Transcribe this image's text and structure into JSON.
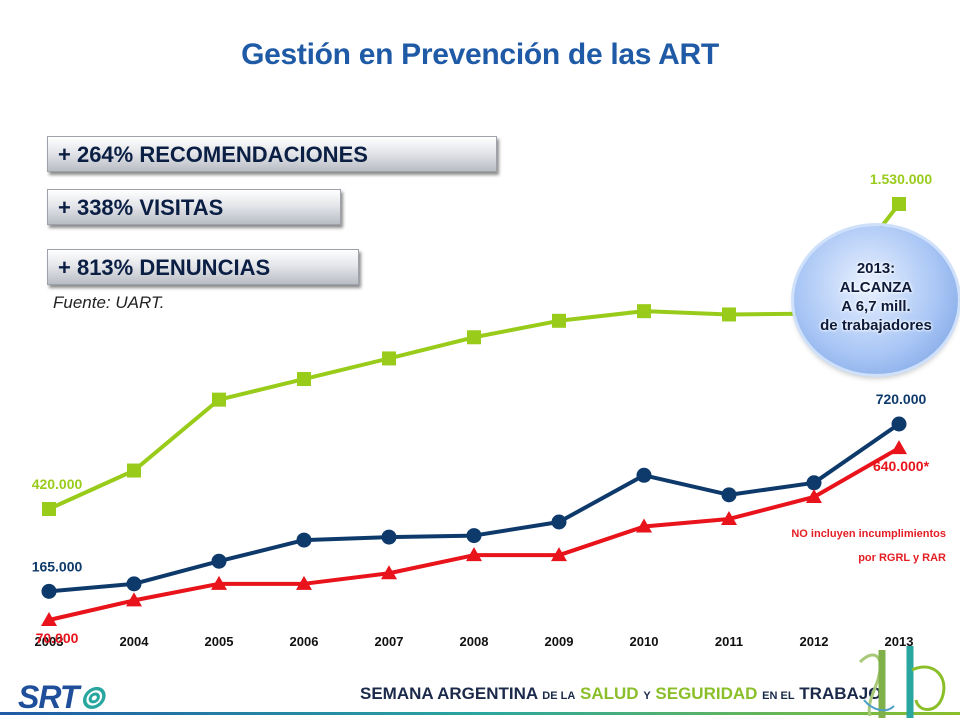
{
  "title": "Gestión en Prevención de las ART",
  "stats": [
    "+ 264% RECOMENDACIONES",
    "+ 338% VISITAS",
    "+ 813% DENUNCIAS"
  ],
  "source": "Fuente: UART.",
  "bubble": {
    "line1": "2013:",
    "line2": "ALCANZA",
    "line3": "A 6,7 mill.",
    "line4": "de trabajadores"
  },
  "note": {
    "line1": "NO incluyen incumplimientos",
    "line2": "por RGRL  y RAR"
  },
  "footer": {
    "logo": "SRT",
    "event_part1": "SEMANA ARGENTINA",
    "event_part2": "DE LA",
    "event_part3": "SALUD",
    "event_part4": "Y",
    "event_part5": "SEGURIDAD",
    "event_part6": "EN EL",
    "event_part7": "TRABAJO"
  },
  "colors": {
    "green": "#99cc1a",
    "navy": "#0e3a6b",
    "red": "#e8131b",
    "title_blue": "#1f5aa6"
  },
  "chart_data": {
    "type": "line",
    "categories": [
      "2003",
      "2004",
      "2005",
      "2006",
      "2007",
      "2008",
      "2009",
      "2010",
      "2011",
      "2012",
      "2013"
    ],
    "series": [
      {
        "marker": "square",
        "color": "#99cc1a",
        "values": [
          420000,
          560000,
          818000,
          893000,
          968000,
          1045000,
          1105000,
          1140000,
          1128000,
          1131000,
          1530000
        ],
        "labels": [
          {
            "index": 0,
            "text": "420.000",
            "pos": "above"
          },
          {
            "index": 10,
            "text": "1.530.000",
            "pos": "above"
          }
        ]
      },
      {
        "marker": "circle",
        "color": "#0e3a6b",
        "values": [
          165000,
          190000,
          265000,
          335000,
          345000,
          350000,
          395000,
          550000,
          485000,
          525000,
          720000
        ],
        "labels": [
          {
            "index": 0,
            "text": "165.000",
            "pos": "above"
          },
          {
            "index": 10,
            "text": "720.000",
            "pos": "above"
          }
        ]
      },
      {
        "marker": "triangle",
        "color": "#e8131b",
        "values": [
          70000,
          135000,
          190000,
          190000,
          225000,
          285000,
          285000,
          380000,
          405000,
          478000,
          640000
        ],
        "labels": [
          {
            "index": 0,
            "text": "70.000",
            "pos": "below"
          },
          {
            "index": 10,
            "text": "640.000*",
            "pos": "below"
          }
        ]
      }
    ]
  }
}
